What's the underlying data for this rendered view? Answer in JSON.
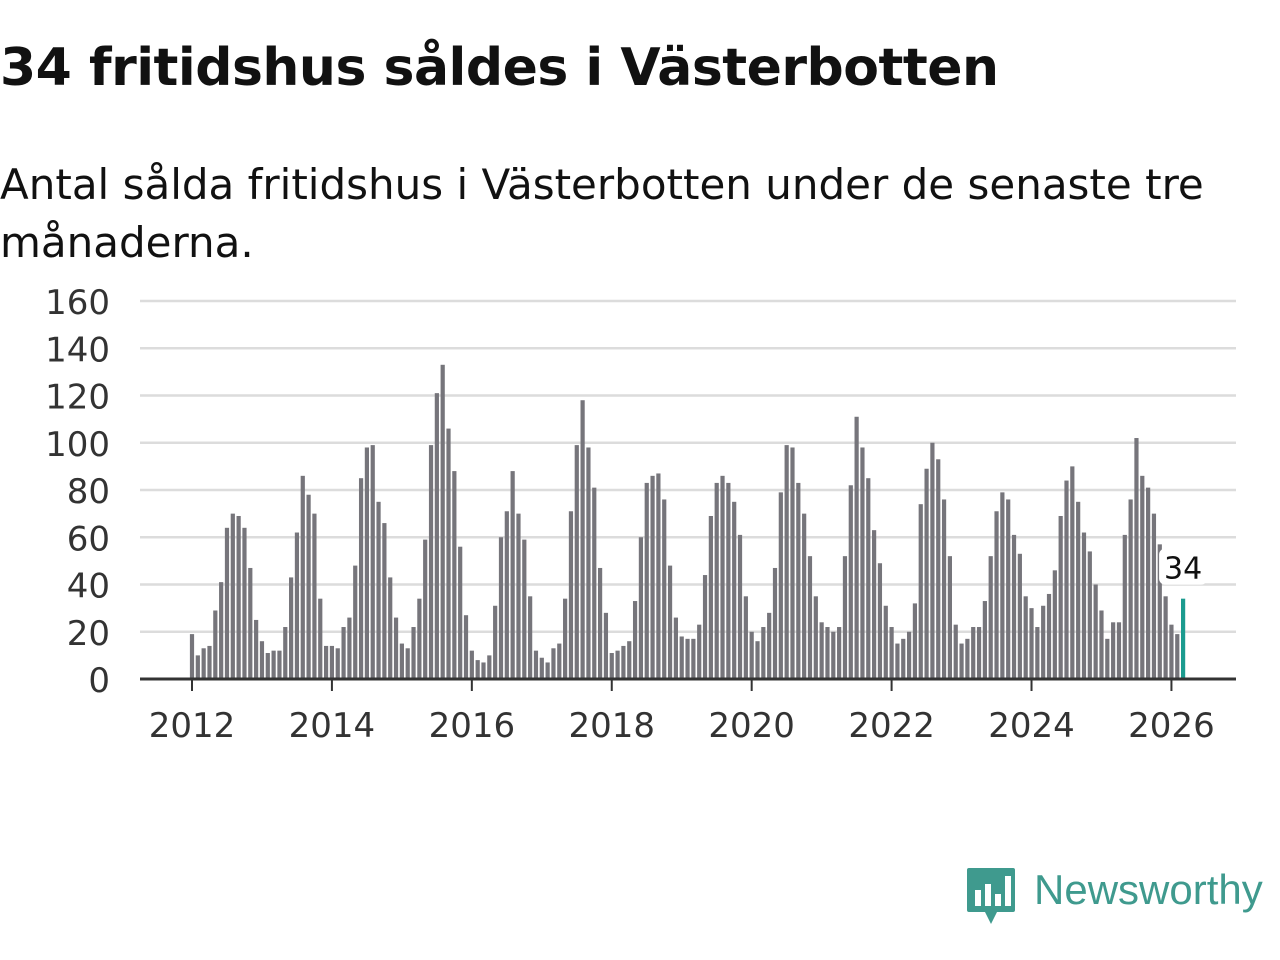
{
  "title": "34 fritidshus såldes i Västerbotten",
  "subtitle": "Antal sålda fritidshus i Västerbotten under de senaste tre månaderna.",
  "brand": {
    "name": "Newsworthy",
    "color": "#3f9a8e"
  },
  "chart_data": {
    "type": "bar",
    "ylim": [
      0,
      160
    ],
    "yticks": [
      "0",
      "20",
      "40",
      "60",
      "80",
      "100",
      "120",
      "140",
      "160"
    ],
    "xticks": [
      "2012",
      "2014",
      "2016",
      "2018",
      "2020",
      "2022",
      "2024",
      "2026"
    ],
    "grid": true,
    "bar_color": "#76757b",
    "highlight_color": "#1b9b8f",
    "start": "2012-01",
    "values": [
      19,
      10,
      13,
      14,
      29,
      41,
      64,
      70,
      69,
      64,
      47,
      25,
      16,
      11,
      12,
      12,
      22,
      43,
      62,
      86,
      78,
      70,
      34,
      14,
      14,
      13,
      22,
      26,
      48,
      85,
      98,
      99,
      75,
      66,
      43,
      26,
      15,
      13,
      22,
      34,
      59,
      99,
      121,
      133,
      106,
      88,
      56,
      27,
      12,
      8,
      7,
      10,
      31,
      60,
      71,
      88,
      70,
      59,
      35,
      12,
      9,
      7,
      13,
      15,
      34,
      71,
      99,
      118,
      98,
      81,
      47,
      28,
      11,
      12,
      14,
      16,
      33,
      60,
      83,
      86,
      87,
      76,
      48,
      26,
      18,
      17,
      17,
      23,
      44,
      69,
      83,
      86,
      83,
      75,
      61,
      35,
      20,
      16,
      22,
      28,
      47,
      79,
      99,
      98,
      83,
      70,
      52,
      35,
      24,
      22,
      20,
      22,
      52,
      82,
      111,
      98,
      85,
      63,
      49,
      31,
      22,
      15,
      17,
      20,
      32,
      74,
      89,
      100,
      93,
      76,
      52,
      23,
      15,
      17,
      22,
      22,
      33,
      52,
      71,
      79,
      76,
      61,
      53,
      35,
      30,
      22,
      31,
      36,
      46,
      69,
      84,
      90,
      75,
      62,
      54,
      40,
      29,
      17,
      24,
      24,
      61,
      76,
      102,
      86,
      81,
      70,
      57,
      35,
      23,
      19,
      34
    ],
    "highlight_label": "34"
  }
}
